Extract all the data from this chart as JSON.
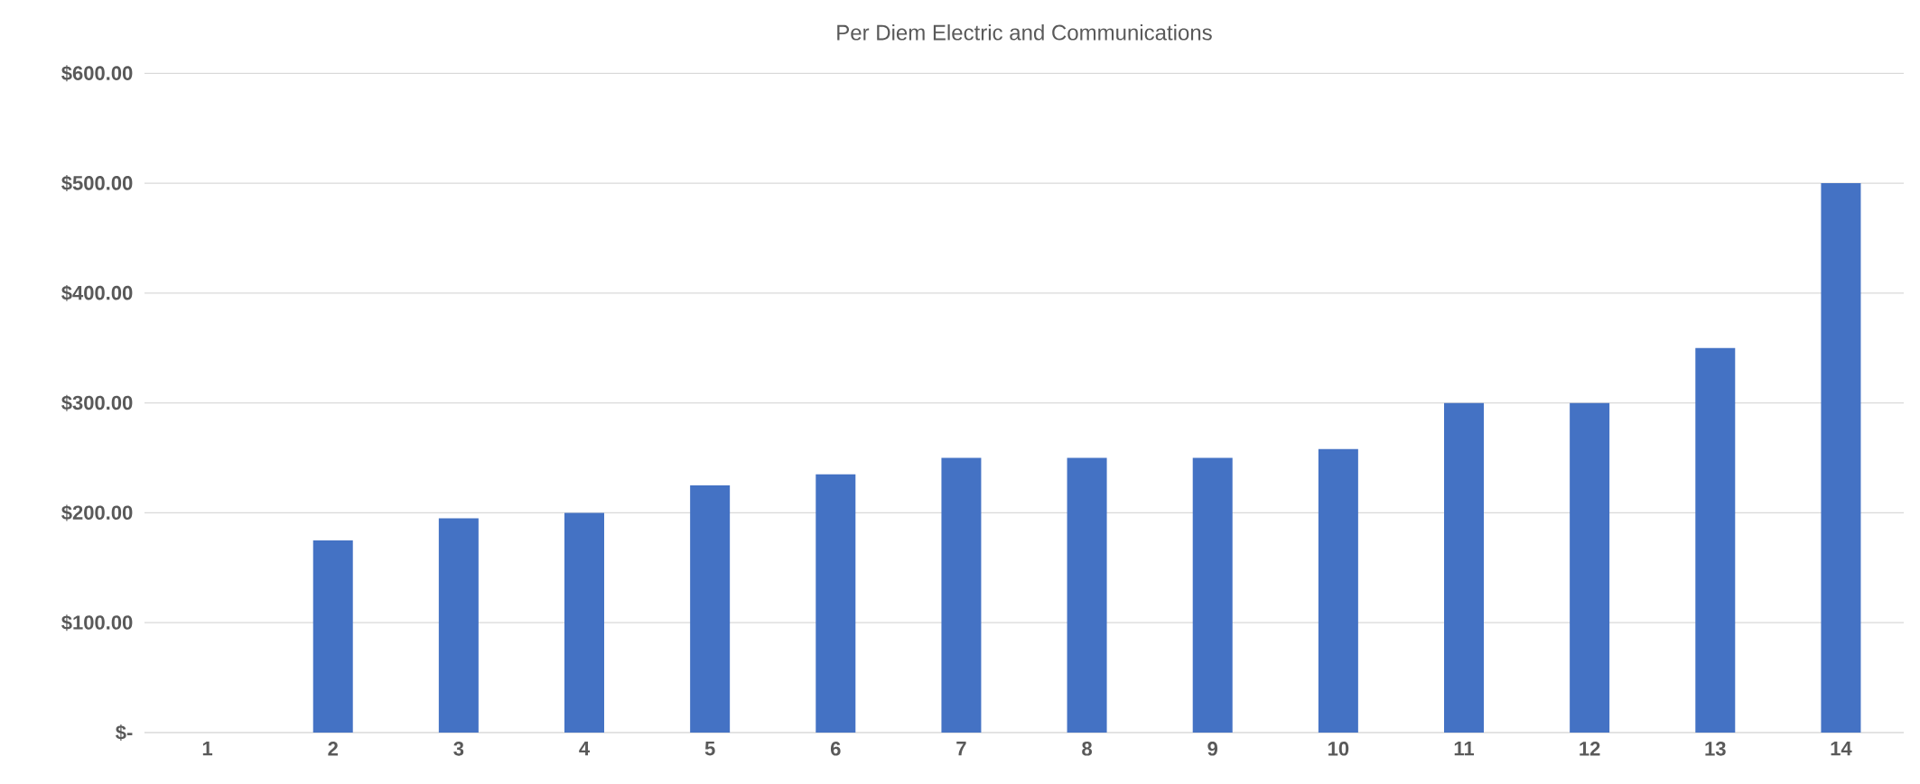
{
  "chart_data": {
    "type": "bar",
    "title": "Per Diem Electric and Communications",
    "categories": [
      "1",
      "2",
      "3",
      "4",
      "5",
      "6",
      "7",
      "8",
      "9",
      "10",
      "11",
      "12",
      "13",
      "14"
    ],
    "values": [
      0,
      175,
      195,
      200,
      225,
      235,
      250,
      250,
      250,
      258,
      300,
      300,
      350,
      500
    ],
    "color": "#4472c4",
    "ylim": [
      0,
      600
    ],
    "yticks": [
      {
        "value": 0,
        "label": "$-"
      },
      {
        "value": 100,
        "label": "$100.00"
      },
      {
        "value": 200,
        "label": "$200.00"
      },
      {
        "value": 300,
        "label": "$300.00"
      },
      {
        "value": 400,
        "label": "$400.00"
      },
      {
        "value": 500,
        "label": "$500.00"
      },
      {
        "value": 600,
        "label": "$600.00"
      }
    ],
    "grid": "y"
  }
}
